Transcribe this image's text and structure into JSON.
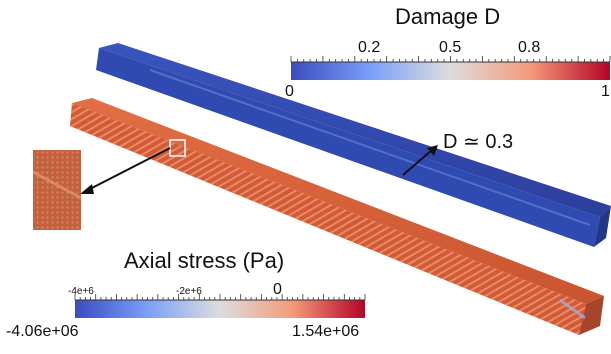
{
  "damage_colorbar": {
    "title": "Damage D",
    "upper_ticks": [
      "0.2",
      "0.5",
      "0.8"
    ],
    "end_labels": {
      "min": "0",
      "max": "1"
    },
    "colors": {
      "low": "#3b4cc0",
      "mid": "#dddddd",
      "high": "#b40426"
    }
  },
  "stress_colorbar": {
    "title": "Axial stress (Pa)",
    "upper_ticks": [
      "-4e+6",
      "-2e+6",
      "0"
    ],
    "end_labels": {
      "min": "-4.06e+06",
      "max": "1.54e+06"
    },
    "colors": {
      "low": "#3b4cc0",
      "mid": "#dddddd",
      "high": "#b40426"
    }
  },
  "annotations": {
    "damage_level": "D ≃ 0.3"
  },
  "beams": {
    "damage_beam_color": "#2f47a8",
    "stress_beam_color": "#d8603a"
  },
  "inset": {
    "description_icon": "zoom-inset"
  }
}
